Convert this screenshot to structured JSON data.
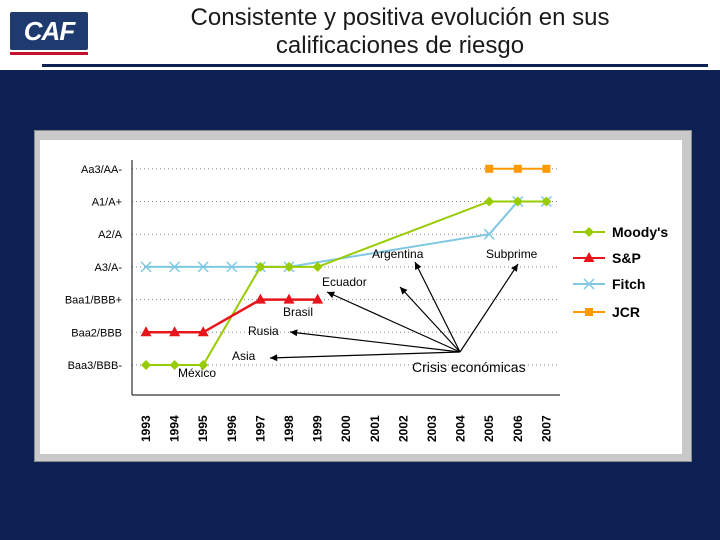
{
  "header": {
    "logo_text": "CAF",
    "title_line1": "Consistente y positiva evolución en sus",
    "title_line2": "calificaciones de riesgo"
  },
  "colors": {
    "background": "#0d2152",
    "moodys": "#99cc00",
    "sp": "#e8141c",
    "fitch": "#7ec8e3",
    "jcr": "#ff9900"
  },
  "chart_data": {
    "type": "line",
    "title": "",
    "xlabel": "",
    "ylabel": "",
    "categories": [
      "1993",
      "1994",
      "1995",
      "1996",
      "1997",
      "1998",
      "1999",
      "2000",
      "2001",
      "2002",
      "2003",
      "2004",
      "2005",
      "2006",
      "2007"
    ],
    "y_levels": [
      "Baa3/BBB-",
      "Baa2/BBB",
      "Baa1/BBB+",
      "A3/A-",
      "A2/A",
      "A1/A+",
      "Aa3/AA-"
    ],
    "legend_position": "right",
    "series": [
      {
        "name": "Moody's",
        "marker": "diamond",
        "values": [
          0,
          0,
          0,
          null,
          3,
          3,
          3,
          null,
          null,
          null,
          null,
          null,
          5,
          5,
          5
        ]
      },
      {
        "name": "S&P",
        "marker": "triangle",
        "values": [
          1,
          1,
          1,
          null,
          2,
          2,
          2,
          null,
          null,
          null,
          null,
          null,
          null,
          null,
          null
        ]
      },
      {
        "name": "Fitch",
        "marker": "x",
        "values": [
          3,
          3,
          3,
          3,
          3,
          3,
          null,
          null,
          null,
          null,
          null,
          null,
          4,
          5,
          5
        ]
      },
      {
        "name": "JCR",
        "marker": "square",
        "values": [
          null,
          null,
          null,
          null,
          null,
          null,
          null,
          null,
          null,
          null,
          null,
          null,
          6,
          6,
          6
        ]
      }
    ],
    "annotations": [
      {
        "text": "México",
        "year": "1993"
      },
      {
        "text": "Asia",
        "year": "1997"
      },
      {
        "text": "Rusia",
        "year": "1998"
      },
      {
        "text": "Brasil",
        "year": "1999"
      },
      {
        "text": "Ecuador",
        "year": "1999"
      },
      {
        "text": "Argentina",
        "year": "2001"
      },
      {
        "text": "Subprime",
        "year": "2007"
      },
      {
        "text": "Crisis económicas",
        "year": ""
      }
    ]
  }
}
